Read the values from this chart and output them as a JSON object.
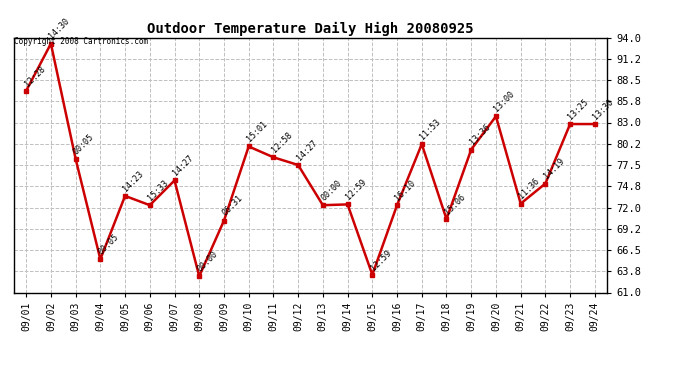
{
  "title": "Outdoor Temperature Daily High 20080925",
  "copyright_text": "Copyright 2008 Cartronics.com",
  "background_color": "#ffffff",
  "plot_bg_color": "#ffffff",
  "grid_color": "#c0c0c0",
  "line_color": "#cc0000",
  "marker_color": "#cc0000",
  "text_color": "#000000",
  "dates": [
    "09/01",
    "09/02",
    "09/03",
    "09/04",
    "09/05",
    "09/06",
    "09/07",
    "09/08",
    "09/09",
    "09/10",
    "09/11",
    "09/12",
    "09/13",
    "09/14",
    "09/15",
    "09/16",
    "09/17",
    "09/18",
    "09/19",
    "09/20",
    "09/21",
    "09/22",
    "09/23",
    "09/24"
  ],
  "values": [
    87.1,
    93.2,
    78.3,
    65.3,
    73.5,
    72.3,
    75.5,
    63.1,
    70.3,
    79.9,
    78.5,
    77.5,
    72.3,
    72.4,
    63.3,
    72.3,
    80.2,
    70.5,
    79.5,
    83.8,
    72.5,
    75.1,
    82.8,
    82.8
  ],
  "time_labels": [
    "12:28",
    "14:30",
    "00:05",
    "00:05",
    "14:23",
    "15:33",
    "14:27",
    "00:00",
    "06:31",
    "15:01",
    "12:58",
    "14:27",
    "00:00",
    "12:59",
    "12:59",
    "16:10",
    "11:53",
    "15:06",
    "13:36",
    "13:00",
    "11:36",
    "14:19",
    "13:25",
    "13:30"
  ],
  "ylim": [
    61.0,
    94.0
  ],
  "yticks": [
    61.0,
    63.8,
    66.5,
    69.2,
    72.0,
    74.8,
    77.5,
    80.2,
    83.0,
    85.8,
    88.5,
    91.2,
    94.0
  ],
  "ylabel_fontsize": 7.5,
  "title_fontsize": 10,
  "tick_fontsize": 7,
  "label_fontsize": 6,
  "linewidth": 1.8,
  "markersize": 3.5
}
